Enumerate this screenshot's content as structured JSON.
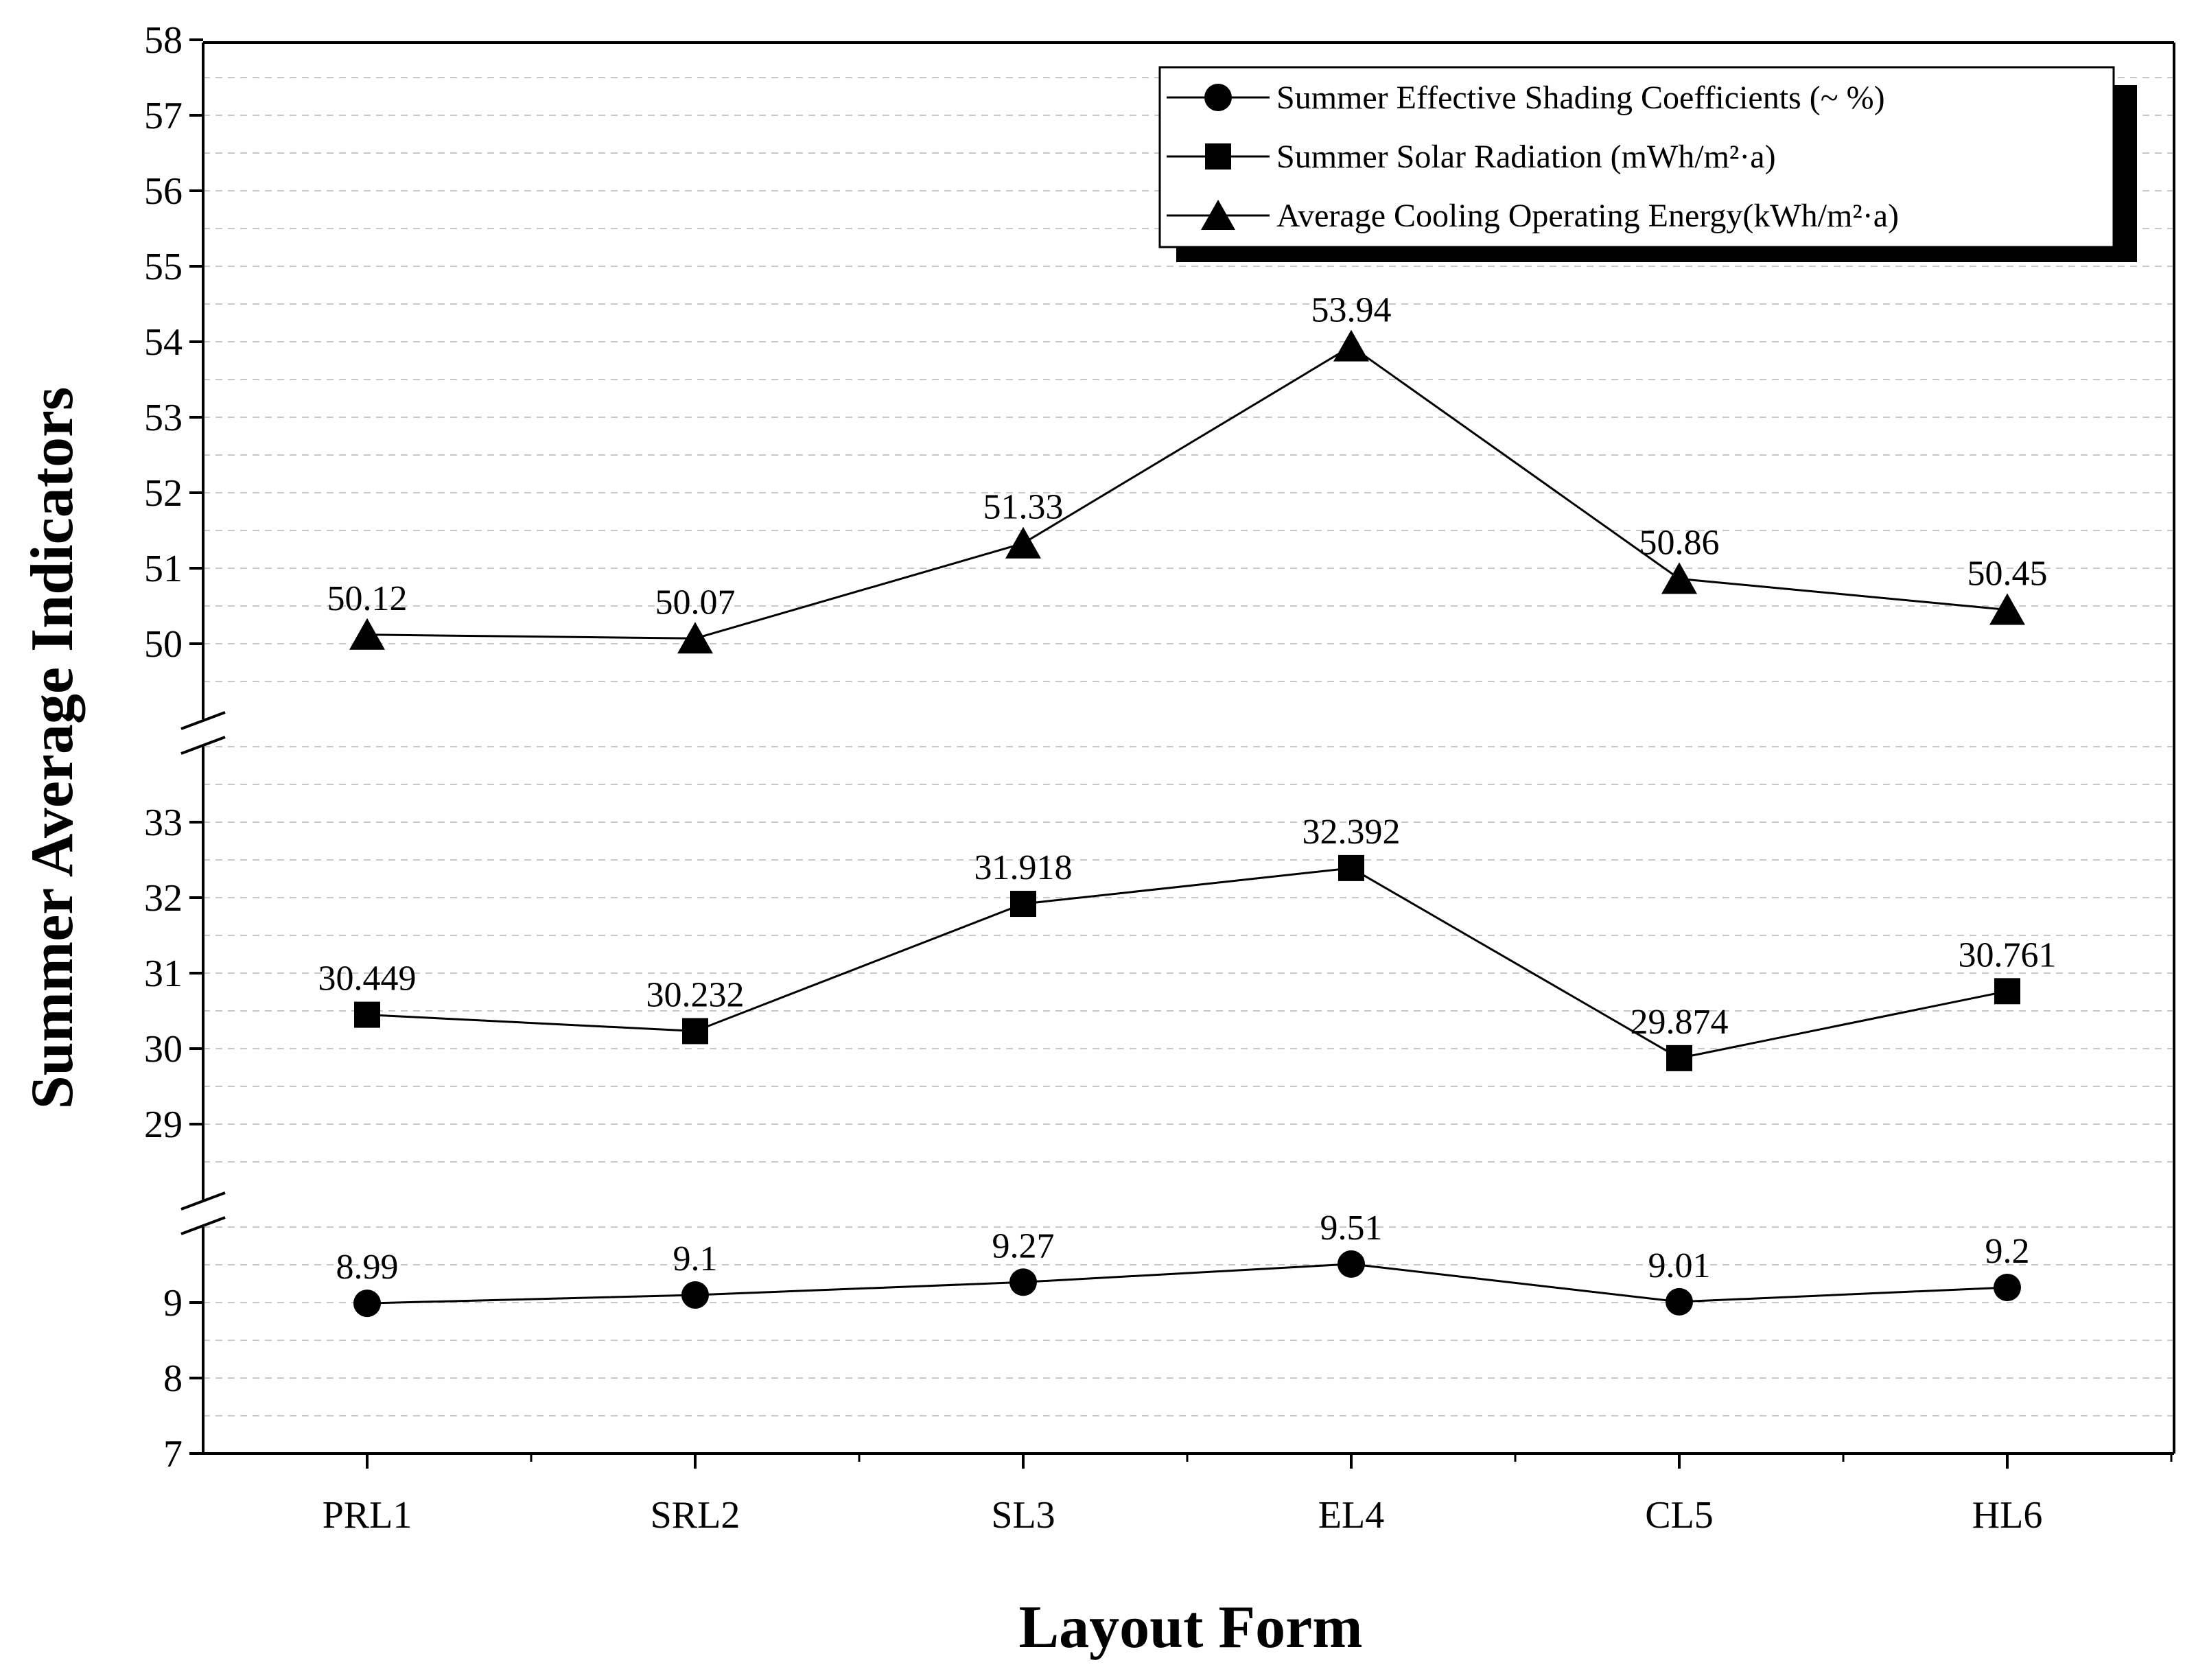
{
  "chart_data": {
    "type": "line",
    "title": "",
    "xlabel": "Layout Form",
    "ylabel": "Summer Average Indicators",
    "categories": [
      "PRL1",
      "SRL2",
      "SL3",
      "EL4",
      "CL5",
      "HL6"
    ],
    "y_axis_break": true,
    "y_segments": [
      {
        "range": [
          7,
          10
        ],
        "ticks": [
          7,
          8,
          9
        ]
      },
      {
        "range": [
          28,
          34
        ],
        "ticks": [
          29,
          30,
          31,
          32,
          33
        ]
      },
      {
        "range": [
          49,
          58
        ],
        "ticks": [
          50,
          51,
          52,
          53,
          54,
          55,
          56,
          57,
          58
        ]
      }
    ],
    "grid": "dashed horizontal at half units",
    "series": [
      {
        "name": "Summer Effective Shading Coefficients (~ %)",
        "marker": "circle",
        "values": [
          8.99,
          9.1,
          9.27,
          9.51,
          9.01,
          9.2
        ],
        "labels": [
          "8.99",
          "9.1",
          "9.27",
          "9.51",
          "9.01",
          "9.2"
        ]
      },
      {
        "name": "Summer Solar Radiation (mWh/m²·a)",
        "marker": "square",
        "values": [
          30.449,
          30.232,
          31.918,
          32.392,
          29.874,
          30.761
        ],
        "labels": [
          "30.449",
          "30.232",
          "31.918",
          "32.392",
          "29.874",
          "30.761"
        ]
      },
      {
        "name": "Average Cooling Operating Energy(kWh/m²·a)",
        "marker": "triangle",
        "values": [
          50.12,
          50.07,
          51.33,
          53.94,
          50.86,
          50.45
        ],
        "labels": [
          "50.12",
          "50.07",
          "51.33",
          "53.94",
          "50.86",
          "50.45"
        ]
      }
    ],
    "legend": {
      "position": "top-right",
      "items": [
        "Summer Effective Shading Coefficients (~ %)",
        "Summer Solar Radiation (mWh/m²·a)",
        "Average Cooling Operating Energy(kWh/m²·a)"
      ]
    }
  }
}
